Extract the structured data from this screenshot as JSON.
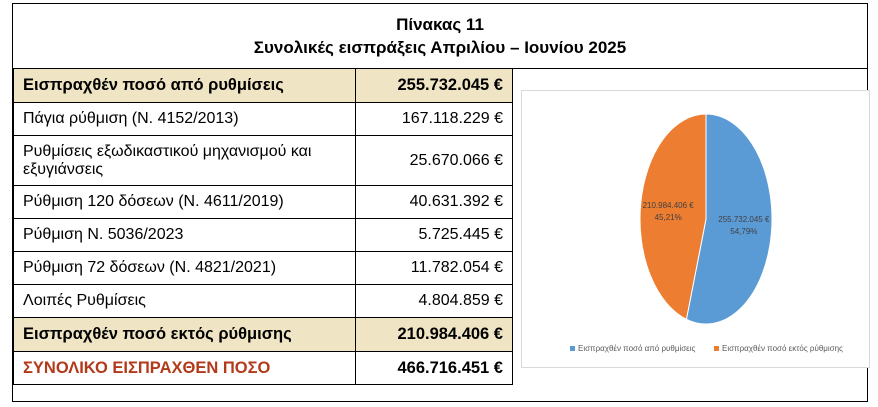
{
  "title": {
    "line1": "Πίνακας 11",
    "line2": "Συνολικές εισπράξεις Απριλίου – Ιουνίου 2025"
  },
  "rows": [
    {
      "label": "Εισπραχθέν ποσό από ρυθμίσεις",
      "value": "255.732.045 €",
      "style": "hl"
    },
    {
      "label": "Πάγια ρύθμιση (Ν. 4152/2013)",
      "value": "167.118.229 €",
      "style": "normal"
    },
    {
      "label": "Ρυθμίσεις εξωδικαστικού μηχανισμού και εξυγιάνσεις",
      "value": "25.670.066 €",
      "style": "tall"
    },
    {
      "label": "Ρύθμιση 120 δόσεων (Ν. 4611/2019)",
      "value": "40.631.392 €",
      "style": "normal"
    },
    {
      "label": "Ρύθμιση Ν. 5036/2023",
      "value": "5.725.445 €",
      "style": "normal"
    },
    {
      "label": "Ρύθμιση 72 δόσεων (Ν. 4821/2021)",
      "value": "11.782.054 €",
      "style": "normal"
    },
    {
      "label": "Λοιπές Ρυθμίσεις",
      "value": "4.804.859 €",
      "style": "normal"
    },
    {
      "label": "Εισπραχθέν ποσό εκτός ρύθμισης",
      "value": "210.984.406 €",
      "style": "hl"
    },
    {
      "label": "ΣΥΝΟΛΙΚΟ ΕΙΣΠΡΑΧΘΕΝ ΠΟΣΟ",
      "value": "466.716.451 €",
      "style": "total"
    }
  ],
  "chart_data": {
    "type": "pie",
    "categories": [
      "Εισπραχθέν ποσό από ρυθμίσεις",
      "Εισπραχθέν ποσό εκτός ρύθμισης"
    ],
    "values": [
      255732045,
      210984406
    ],
    "value_labels": [
      "255.732.045 €",
      "210.984.406 €"
    ],
    "percent_labels": [
      "54,79%",
      "45,21%"
    ],
    "colors": [
      "#5b9bd5",
      "#ed7d31"
    ],
    "legend_position": "bottom",
    "title": ""
  }
}
